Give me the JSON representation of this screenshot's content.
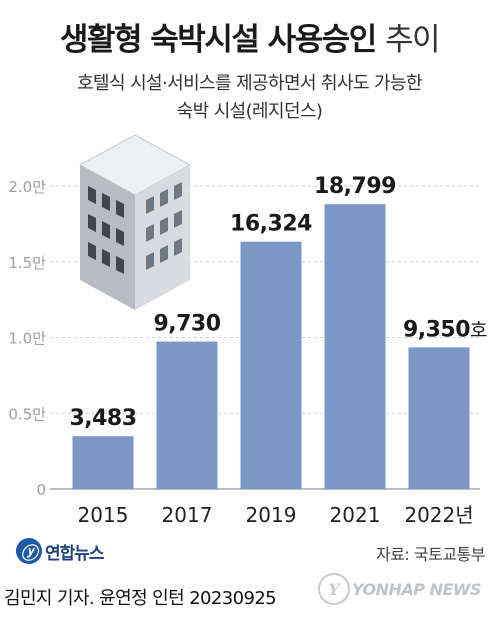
{
  "header": {
    "title_bold": "생활형 숙박시설 사용승인",
    "title_light": "추이",
    "subtitle_line1": "호텔식 시설·서비스를 제공하면서 취사도 가능한",
    "subtitle_line2": "숙박 시설(레지던스)"
  },
  "chart_data": {
    "type": "bar",
    "categories": [
      "2015",
      "2017",
      "2019",
      "2021",
      "2022"
    ],
    "category_labels": [
      "2015",
      "2017",
      "2019",
      "2021",
      "2022년"
    ],
    "values": [
      3483,
      9730,
      16324,
      18799,
      9350
    ],
    "value_labels": [
      "3,483",
      "9,730",
      "16,324",
      "18,799",
      "9,350"
    ],
    "last_value_unit": "호",
    "ylim": [
      0,
      20000
    ],
    "yticks": [
      0,
      5000,
      10000,
      15000,
      20000
    ],
    "ytick_labels": [
      "0",
      "0.5만",
      "1.0만",
      "1.5만",
      "2.0만"
    ],
    "grid": true,
    "bar_color": "#7b98c7",
    "grid_color": "#c9cfd6"
  },
  "footer": {
    "logo_mark": "ⓨ",
    "logo_text": "연합뉴스",
    "source": "자료: 국토교통부",
    "byline": "김민지 기자.  윤연정 인턴  20230925",
    "watermark_mark": "Y",
    "watermark_text": "YONHAP NEWS"
  },
  "icons": {
    "building": "building-icon"
  }
}
